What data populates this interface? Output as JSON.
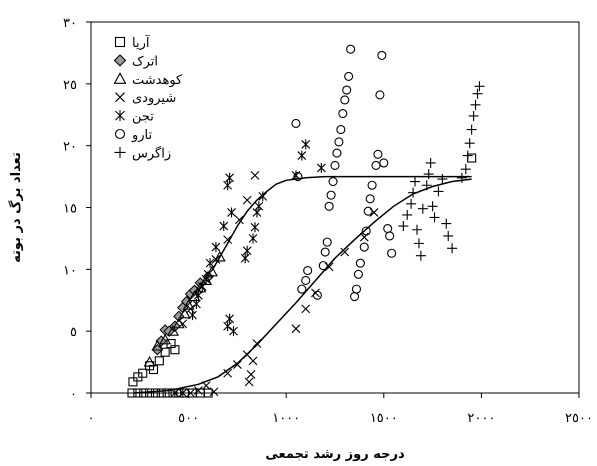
{
  "chart_data": {
    "type": "scatter",
    "xlabel": "درجه روز رشد تجمعی",
    "ylabel": "تعداد برگ در بوته",
    "xlim": [
      0,
      2500
    ],
    "ylim": [
      0,
      30
    ],
    "x_ticks": [
      0,
      500,
      1000,
      1500,
      2000,
      2500
    ],
    "x_tick_labels": [
      "٠",
      "٥٠٠",
      "١٠٠٠",
      "١٥٠٠",
      "٢٠٠٠",
      "٢٥٠٠"
    ],
    "y_ticks": [
      0,
      5,
      10,
      15,
      20,
      25,
      30
    ],
    "y_tick_labels": [
      "٠",
      "٥",
      "١٠",
      "١٥",
      "٢٠",
      "٢٥",
      "٣٠"
    ],
    "grid": false,
    "legend_position": "top-left",
    "series": [
      {
        "name": "آریا",
        "marker": "square",
        "points": [
          [
            210,
            0
          ],
          [
            240,
            0
          ],
          [
            270,
            0
          ],
          [
            300,
            0
          ],
          [
            330,
            0
          ],
          [
            360,
            0
          ],
          [
            390,
            0
          ],
          [
            420,
            0
          ],
          [
            450,
            0
          ],
          [
            480,
            0
          ],
          [
            520,
            0
          ],
          [
            560,
            0
          ],
          [
            600,
            0
          ],
          [
            215,
            0.9
          ],
          [
            240,
            1.3
          ],
          [
            265,
            1.6
          ],
          [
            300,
            2.2
          ],
          [
            320,
            1.9
          ],
          [
            350,
            2.6
          ],
          [
            380,
            3.3
          ],
          [
            410,
            4.0
          ],
          [
            430,
            3.5
          ],
          [
            1950,
            19.0
          ]
        ]
      },
      {
        "name": "اترک",
        "marker": "diamond",
        "points": [
          [
            340,
            3.5
          ],
          [
            360,
            4.2
          ],
          [
            380,
            5.1
          ],
          [
            400,
            5.0
          ],
          [
            430,
            5.4
          ],
          [
            450,
            6.2
          ],
          [
            470,
            6.9
          ],
          [
            490,
            7.4
          ],
          [
            510,
            8.0
          ],
          [
            530,
            8.3
          ],
          [
            560,
            8.9
          ],
          [
            600,
            9.4
          ]
        ]
      },
      {
        "name": "کوهدشت",
        "marker": "triangle",
        "points": [
          [
            300,
            2.5
          ],
          [
            340,
            3.8
          ],
          [
            380,
            4.3
          ],
          [
            420,
            5.0
          ],
          [
            450,
            5.6
          ],
          [
            480,
            6.4
          ],
          [
            500,
            7.1
          ],
          [
            530,
            7.8
          ],
          [
            560,
            8.5
          ],
          [
            590,
            9.1
          ],
          [
            620,
            9.8
          ],
          [
            660,
            11.0
          ]
        ]
      },
      {
        "name": "شیرودی",
        "marker": "x",
        "points": [
          [
            430,
            0
          ],
          [
            470,
            0
          ],
          [
            510,
            0
          ],
          [
            550,
            0.2
          ],
          [
            590,
            0.6
          ],
          [
            630,
            0.1
          ],
          [
            700,
            1.6
          ],
          [
            750,
            2.3
          ],
          [
            800,
            3.1
          ],
          [
            810,
            0.9
          ],
          [
            820,
            1.5
          ],
          [
            830,
            2.6
          ],
          [
            850,
            4.0
          ],
          [
            1050,
            5.2
          ],
          [
            1100,
            6.8
          ],
          [
            1150,
            8.1
          ],
          [
            1220,
            10.2
          ],
          [
            1300,
            11.4
          ],
          [
            1400,
            12.6
          ],
          [
            1450,
            14.6
          ],
          [
            470,
            5.6
          ],
          [
            510,
            6.8
          ],
          [
            550,
            8.4
          ],
          [
            600,
            9.6
          ],
          [
            640,
            10.8
          ],
          [
            700,
            12.4
          ],
          [
            760,
            14.0
          ],
          [
            800,
            15.6
          ],
          [
            840,
            17.6
          ]
        ]
      },
      {
        "name": "تجن",
        "marker": "star",
        "points": [
          [
            590,
            9.2
          ],
          [
            610,
            10.5
          ],
          [
            640,
            11.8
          ],
          [
            680,
            13.5
          ],
          [
            700,
            16.8
          ],
          [
            710,
            17.4
          ],
          [
            720,
            14.6
          ],
          [
            700,
            5.4
          ],
          [
            710,
            6.0
          ],
          [
            730,
            5.0
          ],
          [
            790,
            10.9
          ],
          [
            800,
            11.5
          ],
          [
            830,
            12.5
          ],
          [
            840,
            13.4
          ],
          [
            850,
            14.6
          ],
          [
            860,
            15.1
          ],
          [
            880,
            15.9
          ],
          [
            520,
            6.3
          ],
          [
            540,
            7.2
          ],
          [
            550,
            7.9
          ],
          [
            570,
            8.6
          ],
          [
            1050,
            17.6
          ],
          [
            1080,
            19.2
          ],
          [
            1100,
            20.1
          ],
          [
            1180,
            18.2
          ]
        ]
      },
      {
        "name": "تارو",
        "marker": "circle",
        "points": [
          [
            1050,
            21.8
          ],
          [
            1060,
            17.5
          ],
          [
            1080,
            8.4
          ],
          [
            1100,
            9.1
          ],
          [
            1110,
            9.9
          ],
          [
            1160,
            7.9
          ],
          [
            1190,
            10.3
          ],
          [
            1200,
            11.4
          ],
          [
            1210,
            12.2
          ],
          [
            1220,
            15.1
          ],
          [
            1230,
            16.0
          ],
          [
            1240,
            17.1
          ],
          [
            1250,
            18.4
          ],
          [
            1260,
            19.4
          ],
          [
            1270,
            20.3
          ],
          [
            1280,
            21.3
          ],
          [
            1290,
            22.6
          ],
          [
            1300,
            23.7
          ],
          [
            1310,
            24.5
          ],
          [
            1320,
            25.6
          ],
          [
            1330,
            27.8
          ],
          [
            1350,
            7.8
          ],
          [
            1360,
            8.4
          ],
          [
            1370,
            9.6
          ],
          [
            1380,
            10.5
          ],
          [
            1400,
            11.8
          ],
          [
            1410,
            13.1
          ],
          [
            1420,
            14.7
          ],
          [
            1430,
            15.7
          ],
          [
            1440,
            16.8
          ],
          [
            1460,
            18.4
          ],
          [
            1470,
            19.3
          ],
          [
            1480,
            24.1
          ],
          [
            1490,
            27.3
          ],
          [
            1500,
            18.6
          ],
          [
            1520,
            13.3
          ],
          [
            1530,
            12.7
          ],
          [
            1540,
            11.3
          ]
        ]
      },
      {
        "name": "زاگرس",
        "marker": "plus",
        "points": [
          [
            1600,
            13.5
          ],
          [
            1620,
            14.4
          ],
          [
            1640,
            15.3
          ],
          [
            1650,
            16.2
          ],
          [
            1660,
            17.1
          ],
          [
            1670,
            13.2
          ],
          [
            1680,
            12.1
          ],
          [
            1690,
            11.1
          ],
          [
            1700,
            14.9
          ],
          [
            1720,
            16.8
          ],
          [
            1730,
            17.7
          ],
          [
            1740,
            18.6
          ],
          [
            1750,
            15.1
          ],
          [
            1760,
            14.2
          ],
          [
            1780,
            16.3
          ],
          [
            1800,
            17.3
          ],
          [
            1820,
            13.7
          ],
          [
            1830,
            12.7
          ],
          [
            1850,
            11.7
          ],
          [
            1900,
            17.4
          ],
          [
            1920,
            18.1
          ],
          [
            1930,
            19.2
          ],
          [
            1940,
            20.2
          ],
          [
            1950,
            21.3
          ],
          [
            1960,
            22.4
          ],
          [
            1970,
            23.3
          ],
          [
            1980,
            24.2
          ],
          [
            1990,
            24.8
          ]
        ]
      }
    ],
    "fitted_curves": [
      {
        "points": [
          [
            620,
            9.9
          ],
          [
            700,
            12.1
          ],
          [
            750,
            13.5
          ],
          [
            800,
            14.7
          ],
          [
            850,
            15.6
          ],
          [
            900,
            16.3
          ],
          [
            950,
            16.9
          ],
          [
            1000,
            17.2
          ],
          [
            1100,
            17.4
          ],
          [
            1200,
            17.5
          ],
          [
            1400,
            17.5
          ],
          [
            1700,
            17.5
          ],
          [
            1950,
            17.5
          ]
        ]
      },
      {
        "points": [
          [
            220,
            0
          ],
          [
            400,
            0.2
          ],
          [
            550,
            0.7
          ],
          [
            650,
            1.3
          ],
          [
            750,
            2.4
          ],
          [
            850,
            3.9
          ],
          [
            950,
            5.6
          ],
          [
            1050,
            7.3
          ],
          [
            1150,
            9.1
          ],
          [
            1250,
            10.9
          ],
          [
            1350,
            12.4
          ],
          [
            1450,
            13.8
          ],
          [
            1550,
            15.1
          ],
          [
            1650,
            16.1
          ],
          [
            1750,
            16.7
          ],
          [
            1850,
            17.1
          ],
          [
            1950,
            17.3
          ]
        ]
      }
    ]
  }
}
